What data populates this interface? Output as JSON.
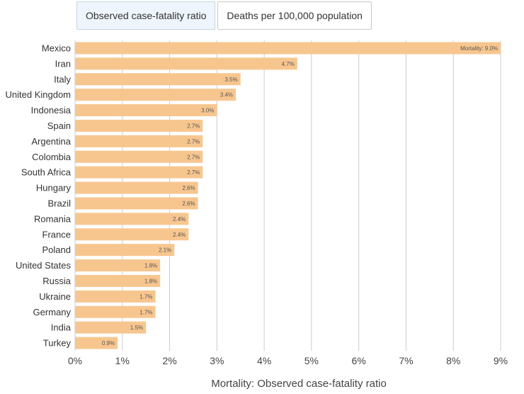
{
  "tabs": [
    {
      "label": "Observed case-fatality ratio",
      "active": true
    },
    {
      "label": "Deaths per 100,000 population",
      "active": false
    }
  ],
  "colors": {
    "bar": "#f7c68f",
    "grid": "#cccccc"
  },
  "chart_data": {
    "type": "bar",
    "orientation": "horizontal",
    "categories": [
      "Mexico",
      "Iran",
      "Italy",
      "United Kingdom",
      "Indonesia",
      "Spain",
      "Argentina",
      "Colombia",
      "South Africa",
      "Hungary",
      "Brazil",
      "Romania",
      "France",
      "Poland",
      "United States",
      "Russia",
      "Ukraine",
      "Germany",
      "India",
      "Turkey"
    ],
    "values": [
      9.0,
      4.7,
      3.5,
      3.4,
      3.0,
      2.7,
      2.7,
      2.7,
      2.7,
      2.6,
      2.6,
      2.4,
      2.4,
      2.1,
      1.8,
      1.8,
      1.7,
      1.7,
      1.5,
      0.9
    ],
    "value_labels": [
      "Mortality: 9.0%",
      "4.7%",
      "3.5%",
      "3.4%",
      "3.0%",
      "2.7%",
      "2.7%",
      "2.7%",
      "2.7%",
      "2.6%",
      "2.6%",
      "2.4%",
      "2.4%",
      "2.1%",
      "1.8%",
      "1.8%",
      "1.7%",
      "1.7%",
      "1.5%",
      "0.9%"
    ],
    "xlabel": "Mortality: Observed case-fatality ratio",
    "xlim": [
      0,
      9
    ],
    "xticks": [
      0,
      1,
      2,
      3,
      4,
      5,
      6,
      7,
      8,
      9
    ],
    "xtick_labels": [
      "0%",
      "1%",
      "2%",
      "3%",
      "4%",
      "5%",
      "6%",
      "7%",
      "8%",
      "9%"
    ],
    "grid": true
  }
}
